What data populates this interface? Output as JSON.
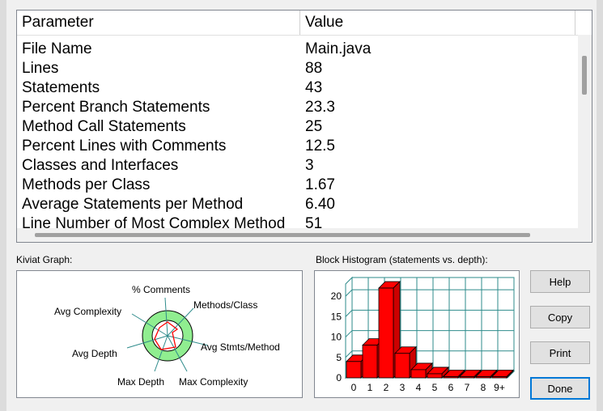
{
  "table": {
    "headers": {
      "parameter": "Parameter",
      "value": "Value"
    },
    "rows": [
      {
        "parameter": "File Name",
        "value": "Main.java"
      },
      {
        "parameter": "Lines",
        "value": "88"
      },
      {
        "parameter": "Statements",
        "value": "43"
      },
      {
        "parameter": "Percent Branch Statements",
        "value": "23.3"
      },
      {
        "parameter": "Method Call Statements",
        "value": "25"
      },
      {
        "parameter": "Percent Lines with Comments",
        "value": "12.5"
      },
      {
        "parameter": "Classes and Interfaces",
        "value": "3"
      },
      {
        "parameter": "Methods per Class",
        "value": "1.67"
      },
      {
        "parameter": "Average Statements per Method",
        "value": "6.40"
      },
      {
        "parameter": "Line Number of Most Complex Method",
        "value": "51"
      }
    ]
  },
  "kiviat": {
    "title": "Kiviat Graph:",
    "axes": [
      "% Comments",
      "Methods/Class",
      "Avg Stmts/Method",
      "Max Complexity",
      "Max Depth",
      "Avg Depth",
      "Avg Complexity"
    ]
  },
  "histogram": {
    "title": "Block Histogram (statements vs. depth):"
  },
  "chart_data": {
    "type": "bar",
    "categories": [
      "0",
      "1",
      "2",
      "3",
      "4",
      "5",
      "6",
      "7",
      "8",
      "9+"
    ],
    "values": [
      4,
      8,
      22,
      6,
      2,
      1,
      0,
      0,
      0,
      0
    ],
    "ylim": [
      0,
      23
    ],
    "yticks": [
      "0",
      "5",
      "10",
      "15",
      "20"
    ],
    "bar_color": "#ff0000"
  },
  "buttons": {
    "help": "Help",
    "copy": "Copy",
    "print": "Print",
    "done": "Done"
  }
}
